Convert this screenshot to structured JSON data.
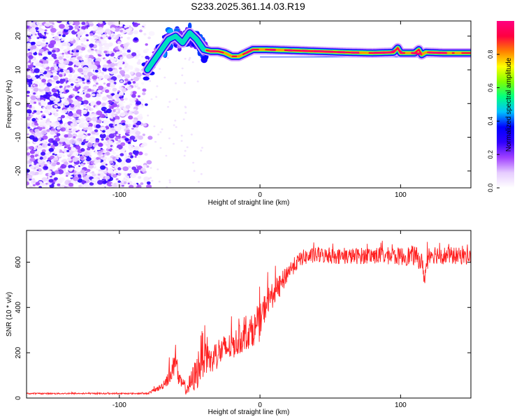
{
  "title": "S233.2025.361.14.03.R19",
  "chart_data": [
    {
      "type": "heatmap",
      "name": "spectrogram",
      "title": "S233.2025.361.14.03.R19",
      "xlabel": "Height of straight line (km)",
      "ylabel": "Frequency (Hz)",
      "xlim": [
        -166,
        150
      ],
      "ylim": [
        -25,
        24.5
      ],
      "xticks": [
        -100,
        0,
        100
      ],
      "yticks": [
        -20,
        -10,
        0,
        10,
        20
      ],
      "colorbar": {
        "label": "Normalized spectral amplitude",
        "range": [
          0,
          1
        ],
        "ticks": [
          "0.0",
          "0.2",
          "0.4",
          "0.6",
          "0.8"
        ],
        "colormap": [
          "#ffffff",
          "#e6ccff",
          "#a040ff",
          "#3000ff",
          "#0000ff",
          "#00c0ff",
          "#00ff80",
          "#80ff00",
          "#ffff00",
          "#ff8000",
          "#ff0040",
          "#ff0080"
        ]
      },
      "carrier_frequency_track": {
        "x": [
          -80,
          -75,
          -70,
          -65,
          -60,
          -55,
          -50,
          -45,
          -40,
          -35,
          -30,
          -25,
          -20,
          -15,
          -10,
          -5,
          0,
          5,
          20,
          40,
          60,
          80,
          95,
          98,
          100,
          110,
          113,
          115,
          118,
          130,
          150
        ],
        "y": [
          10,
          13,
          16,
          19,
          20,
          18,
          21,
          19,
          16,
          15.5,
          15.5,
          15,
          14,
          14,
          15,
          16,
          16,
          16,
          15.8,
          15.5,
          15.2,
          15,
          15.2,
          16.5,
          15,
          15,
          16,
          14.5,
          15.2,
          15,
          15
        ]
      },
      "noise_region_x": [
        -166,
        -80
      ],
      "secondary_track": {
        "x": [
          0,
          150
        ],
        "y": [
          13.8,
          13.8
        ]
      }
    },
    {
      "type": "line",
      "name": "snr",
      "xlabel": "Height of straight line (km)",
      "ylabel": "SNR (10 * v/v)",
      "xlim": [
        -166,
        150
      ],
      "ylim": [
        0,
        740
      ],
      "xticks": [
        -100,
        0,
        100
      ],
      "yticks": [
        0,
        200,
        400,
        600
      ],
      "color": "#ff2020",
      "series_envelope": {
        "x": [
          -166,
          -80,
          -70,
          -62,
          -60,
          -58,
          -52,
          -45,
          -40,
          -35,
          -30,
          -20,
          -10,
          -5,
          0,
          5,
          10,
          15,
          20,
          25,
          30,
          40,
          60,
          80,
          100,
          110,
          115,
          117,
          120,
          130,
          150
        ],
        "y": [
          20,
          20,
          50,
          120,
          200,
          80,
          40,
          110,
          220,
          160,
          200,
          230,
          280,
          300,
          330,
          430,
          460,
          500,
          560,
          590,
          620,
          630,
          625,
          630,
          625,
          630,
          600,
          530,
          640,
          630,
          625
        ],
        "noise_amplitude": [
          3,
          3,
          15,
          50,
          70,
          30,
          30,
          80,
          120,
          60,
          70,
          60,
          70,
          70,
          80,
          60,
          55,
          50,
          40,
          35,
          35,
          35,
          35,
          38,
          40,
          45,
          40,
          40,
          45,
          40,
          35
        ]
      }
    }
  ]
}
